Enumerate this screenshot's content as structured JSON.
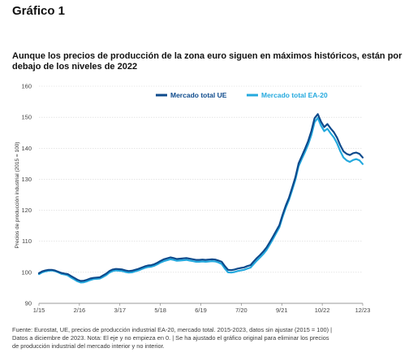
{
  "figure_label": "Gráfico 1",
  "chart_data": {
    "type": "line",
    "title": "Aunque los precios de producción de la zona euro siguen en máximos históricos, están por debajo de los niveles de 2022",
    "ylabel": "Precios de producción industrial (2015 = 100)",
    "xlabel": "",
    "ylim": [
      90,
      160
    ],
    "yticks": [
      90,
      100,
      110,
      120,
      130,
      140,
      150,
      160
    ],
    "x_tick_labels": [
      "1/15",
      "2/16",
      "3/17",
      "5/18",
      "6/19",
      "7/20",
      "9/21",
      "10/22",
      "12/23"
    ],
    "grid": "horizontal",
    "legend_position": "top-right",
    "series": [
      {
        "name": "Mercado total UE",
        "color": "#0d4a8c",
        "values": [
          99.7,
          100.3,
          100.6,
          100.8,
          100.8,
          100.6,
          100.2,
          99.8,
          99.6,
          99.4,
          98.8,
          98.2,
          97.6,
          97.2,
          97.3,
          97.6,
          98.0,
          98.2,
          98.3,
          98.4,
          99.0,
          99.6,
          100.4,
          100.9,
          101.1,
          101.0,
          100.9,
          100.6,
          100.4,
          100.5,
          100.8,
          101.1,
          101.5,
          101.9,
          102.2,
          102.3,
          102.6,
          103.1,
          103.7,
          104.2,
          104.5,
          104.8,
          104.6,
          104.3,
          104.4,
          104.5,
          104.6,
          104.4,
          104.2,
          104.0,
          104.0,
          104.1,
          104.0,
          104.1,
          104.2,
          104.1,
          103.8,
          103.4,
          102.0,
          100.8,
          100.7,
          100.9,
          101.2,
          101.4,
          101.6,
          102.0,
          102.3,
          103.5,
          104.6,
          105.6,
          106.7,
          108.0,
          109.7,
          111.5,
          113.3,
          115.2,
          118.5,
          121.5,
          124.0,
          127.3,
          130.6,
          135.1,
          137.4,
          139.8,
          142.3,
          145.6,
          149.7,
          151.0,
          148.6,
          146.8,
          147.8,
          146.4,
          145.2,
          143.4,
          141.0,
          139.0,
          138.2,
          137.8,
          138.4,
          138.6,
          138.2,
          137.0
        ]
      },
      {
        "name": "Mercado total EA-20",
        "color": "#24a9de",
        "values": [
          99.4,
          100.0,
          100.3,
          100.5,
          100.6,
          100.4,
          100.0,
          99.5,
          99.3,
          99.0,
          98.3,
          97.7,
          97.1,
          96.7,
          96.8,
          97.1,
          97.5,
          97.8,
          97.9,
          98.0,
          98.5,
          99.1,
          99.9,
          100.4,
          100.6,
          100.5,
          100.4,
          100.1,
          99.9,
          100.0,
          100.3,
          100.6,
          101.0,
          101.4,
          101.7,
          101.8,
          102.1,
          102.6,
          103.2,
          103.6,
          103.9,
          104.2,
          104.0,
          103.7,
          103.8,
          103.9,
          104.0,
          103.8,
          103.6,
          103.4,
          103.4,
          103.5,
          103.4,
          103.5,
          103.6,
          103.5,
          103.2,
          102.7,
          101.2,
          100.0,
          99.9,
          100.1,
          100.4,
          100.6,
          100.8,
          101.2,
          101.5,
          102.7,
          103.8,
          104.8,
          105.9,
          107.2,
          108.9,
          110.7,
          112.6,
          114.5,
          117.8,
          120.8,
          123.3,
          126.5,
          129.8,
          134.2,
          136.5,
          138.8,
          141.2,
          144.3,
          148.4,
          149.8,
          147.3,
          145.5,
          146.3,
          144.8,
          143.5,
          141.6,
          139.1,
          137.0,
          136.1,
          135.6,
          136.2,
          136.5,
          136.1,
          134.9
        ]
      }
    ]
  },
  "footnote": {
    "line1": "Fuente: Eurostat, UE, precios de producción industrial EA-20, mercado total. 2015-2023, datos sin ajustar (2015 = 100)  |",
    "line2": "Datos a diciembre de 2023.    Nota: El eje y no empieza en 0.  |  Se ha ajustado el gráfico original para eliminar los precios",
    "line3": "de producción industrial del mercado interior y no interior."
  }
}
